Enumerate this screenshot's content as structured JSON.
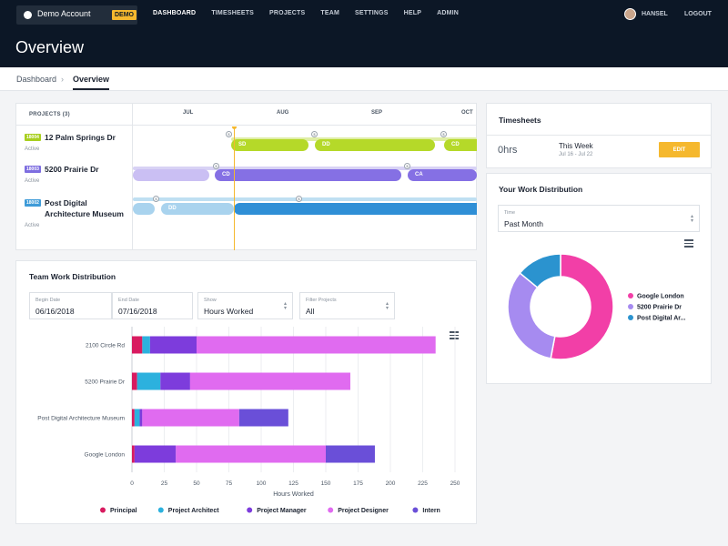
{
  "header": {
    "account_name": "Demo Account",
    "account_badge": "DEMO",
    "nav": [
      "DASHBOARD",
      "TIMESHEETS",
      "PROJECTS",
      "TEAM",
      "SETTINGS",
      "HELP",
      "ADMIN"
    ],
    "active_nav": "DASHBOARD",
    "user_name": "HANSEL",
    "logout_label": "LOGOUT",
    "page_title": "Overview"
  },
  "breadcrumb": {
    "home": "Dashboard",
    "separator": "›",
    "current": "Overview"
  },
  "timeline": {
    "projects_header": "PROJECTS (3)",
    "months": [
      "JUL",
      "AUG",
      "SEP",
      "OCT"
    ],
    "projects": [
      {
        "id": "18004",
        "name": "12 Palm Springs Dr",
        "status": "Active",
        "color": "#a8cf1f",
        "phases": [
          {
            "label": "SD"
          },
          {
            "label": "DD"
          },
          {
            "label": "CD"
          }
        ]
      },
      {
        "id": "18003",
        "name": "5200 Prairie Dr",
        "status": "Active",
        "color": "#7e6ee0",
        "phases": [
          {
            "label": ""
          },
          {
            "label": "CD"
          },
          {
            "label": "CA"
          }
        ]
      },
      {
        "id": "18002",
        "name": "Post Digital Architecture Museum",
        "status": "Active",
        "color": "#3e9bd8",
        "phases": [
          {
            "label": ""
          },
          {
            "label": "DD"
          },
          {
            "label": ""
          }
        ]
      }
    ],
    "marker_glyph": "$"
  },
  "timesheets": {
    "title": "Timesheets",
    "hours": "0hrs",
    "period_label": "This Week",
    "period_range": "Jul 16 - Jul 22",
    "edit_label": "EDIT"
  },
  "work_distribution": {
    "title": "Your Work Distribution",
    "time_label": "Time",
    "time_value": "Past Month"
  },
  "team_distribution": {
    "title": "Team Work Distribution",
    "filters": {
      "begin_label": "Begin Date",
      "begin_value": "06/16/2018",
      "end_label": "End Date",
      "end_value": "07/16/2018",
      "show_label": "Show",
      "show_value": "Hours Worked",
      "filter_label": "Filter Projects",
      "filter_value": "All"
    }
  },
  "chart_data": [
    {
      "type": "bar",
      "orientation": "horizontal",
      "stacked": true,
      "title": "Team Work Distribution",
      "xlabel": "Hours Worked",
      "ylabel": "",
      "xlim": [
        0,
        250
      ],
      "xticks": [
        0,
        25,
        50,
        75,
        100,
        125,
        150,
        175,
        200,
        225,
        250
      ],
      "categories": [
        "2100 Circle Rd",
        "5200 Prairie Dr",
        "Post Digital Architecture Museum",
        "Google London"
      ],
      "series": [
        {
          "name": "Principal",
          "color": "#d81b60",
          "values": [
            8,
            4,
            2,
            2
          ]
        },
        {
          "name": "Project Architect",
          "color": "#2cb1de",
          "values": [
            6,
            18,
            4,
            0
          ]
        },
        {
          "name": "Project Manager",
          "color": "#7d3cdc",
          "values": [
            36,
            23,
            2,
            32
          ]
        },
        {
          "name": "Project Designer",
          "color": "#e06bf0",
          "values": [
            185,
            124,
            75,
            116
          ]
        },
        {
          "name": "Intern",
          "color": "#6a4fd8",
          "values": [
            0,
            0,
            38,
            38
          ]
        }
      ],
      "legend": "bottom"
    },
    {
      "type": "pie",
      "donut": true,
      "title": "Your Work Distribution",
      "categories": [
        "Google London",
        "5200 Prairie Dr",
        "Post Digital Ar..."
      ],
      "colors": [
        "#f23fa7",
        "#a68bf0",
        "#2b93cf"
      ],
      "values": [
        53,
        33,
        14
      ],
      "legend": "right"
    }
  ]
}
